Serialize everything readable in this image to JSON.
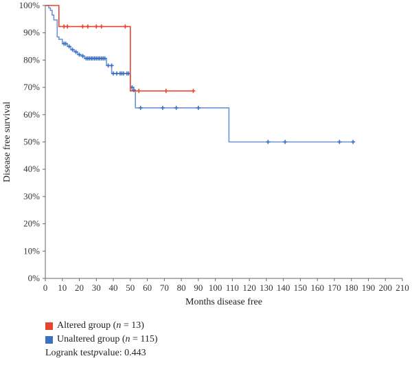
{
  "chart_data": {
    "type": "line",
    "subtype": "kaplan-meier",
    "xlabel": "Months disease free",
    "ylabel": "Disease free survival",
    "xlim": [
      0,
      210
    ],
    "ylim": [
      0,
      100
    ],
    "x_ticks": [
      "0",
      "10",
      "20",
      "30",
      "40",
      "50",
      "60",
      "70",
      "80",
      "90",
      "100",
      "110",
      "120",
      "130",
      "140",
      "150",
      "160",
      "170",
      "180",
      "190",
      "200",
      "210"
    ],
    "y_ticks": [
      "0%",
      "10%",
      "20%",
      "30%",
      "40%",
      "50%",
      "60%",
      "70%",
      "80%",
      "90%",
      "100%"
    ],
    "series": [
      {
        "name": "Altered group",
        "color": "#e8432e",
        "steps": [
          [
            0,
            100
          ],
          [
            8,
            100
          ],
          [
            8,
            92.3
          ],
          [
            50,
            92.3
          ],
          [
            50,
            68.7
          ],
          [
            87,
            68.7
          ]
        ],
        "censor": [
          [
            11,
            92.3
          ],
          [
            13,
            92.3
          ],
          [
            22,
            92.3
          ],
          [
            25,
            92.3
          ],
          [
            30,
            92.3
          ],
          [
            33,
            92.3
          ],
          [
            47,
            92.3
          ],
          [
            55,
            68.7
          ],
          [
            71,
            68.7
          ],
          [
            87,
            68.7
          ]
        ]
      },
      {
        "name": "Unaltered group",
        "color": "#3a6fc4",
        "steps": [
          [
            0,
            100
          ],
          [
            2,
            100
          ],
          [
            2,
            99.1
          ],
          [
            3,
            99.1
          ],
          [
            3,
            98.2
          ],
          [
            4,
            98.2
          ],
          [
            4,
            96.5
          ],
          [
            5,
            96.5
          ],
          [
            5,
            94.7
          ],
          [
            7,
            94.7
          ],
          [
            7,
            88.5
          ],
          [
            8,
            88.5
          ],
          [
            8,
            87.6
          ],
          [
            10,
            87.6
          ],
          [
            10,
            86
          ],
          [
            13,
            86
          ],
          [
            13,
            85
          ],
          [
            15,
            85
          ],
          [
            15,
            83.8
          ],
          [
            17,
            83.8
          ],
          [
            17,
            83
          ],
          [
            19,
            83
          ],
          [
            19,
            82
          ],
          [
            21,
            82
          ],
          [
            21,
            81.5
          ],
          [
            23,
            81.5
          ],
          [
            23,
            80.6
          ],
          [
            36,
            80.6
          ],
          [
            36,
            78
          ],
          [
            39,
            78
          ],
          [
            39,
            75.1
          ],
          [
            50,
            75.1
          ],
          [
            50,
            70
          ],
          [
            52,
            70
          ],
          [
            52,
            69
          ],
          [
            53,
            69
          ],
          [
            53,
            62.5
          ],
          [
            108,
            62.5
          ],
          [
            108,
            50
          ],
          [
            181,
            50
          ]
        ],
        "censor": [
          [
            11,
            86
          ],
          [
            12,
            86
          ],
          [
            14,
            85
          ],
          [
            16,
            83.8
          ],
          [
            18,
            83
          ],
          [
            20,
            82
          ],
          [
            22,
            81.5
          ],
          [
            24,
            80.6
          ],
          [
            25,
            80.6
          ],
          [
            26,
            80.6
          ],
          [
            27,
            80.6
          ],
          [
            28,
            80.6
          ],
          [
            29,
            80.6
          ],
          [
            30,
            80.6
          ],
          [
            31,
            80.6
          ],
          [
            32,
            80.6
          ],
          [
            33,
            80.6
          ],
          [
            34,
            80.6
          ],
          [
            35,
            80.6
          ],
          [
            37,
            78
          ],
          [
            39,
            78
          ],
          [
            40,
            75.1
          ],
          [
            42,
            75.1
          ],
          [
            44,
            75.1
          ],
          [
            45,
            75.1
          ],
          [
            46,
            75.1
          ],
          [
            48,
            75.1
          ],
          [
            49,
            75.1
          ],
          [
            51,
            70
          ],
          [
            52,
            69
          ],
          [
            56,
            62.5
          ],
          [
            69,
            62.5
          ],
          [
            77,
            62.5
          ],
          [
            90,
            62.5
          ],
          [
            131,
            50
          ],
          [
            141,
            50
          ],
          [
            173,
            50
          ],
          [
            181,
            50
          ]
        ]
      }
    ]
  },
  "legend": {
    "items": [
      {
        "label_pre": "Altered group (",
        "n_var": "n",
        "label_post": " = 13)",
        "color": "#e8432e"
      },
      {
        "label_pre": "Unaltered group (",
        "n_var": "n",
        "label_post": " = 115)",
        "color": "#3a6fc4"
      }
    ],
    "logrank_pre": "Logrank test ",
    "logrank_var": "p",
    "logrank_post": " value: 0.443"
  }
}
